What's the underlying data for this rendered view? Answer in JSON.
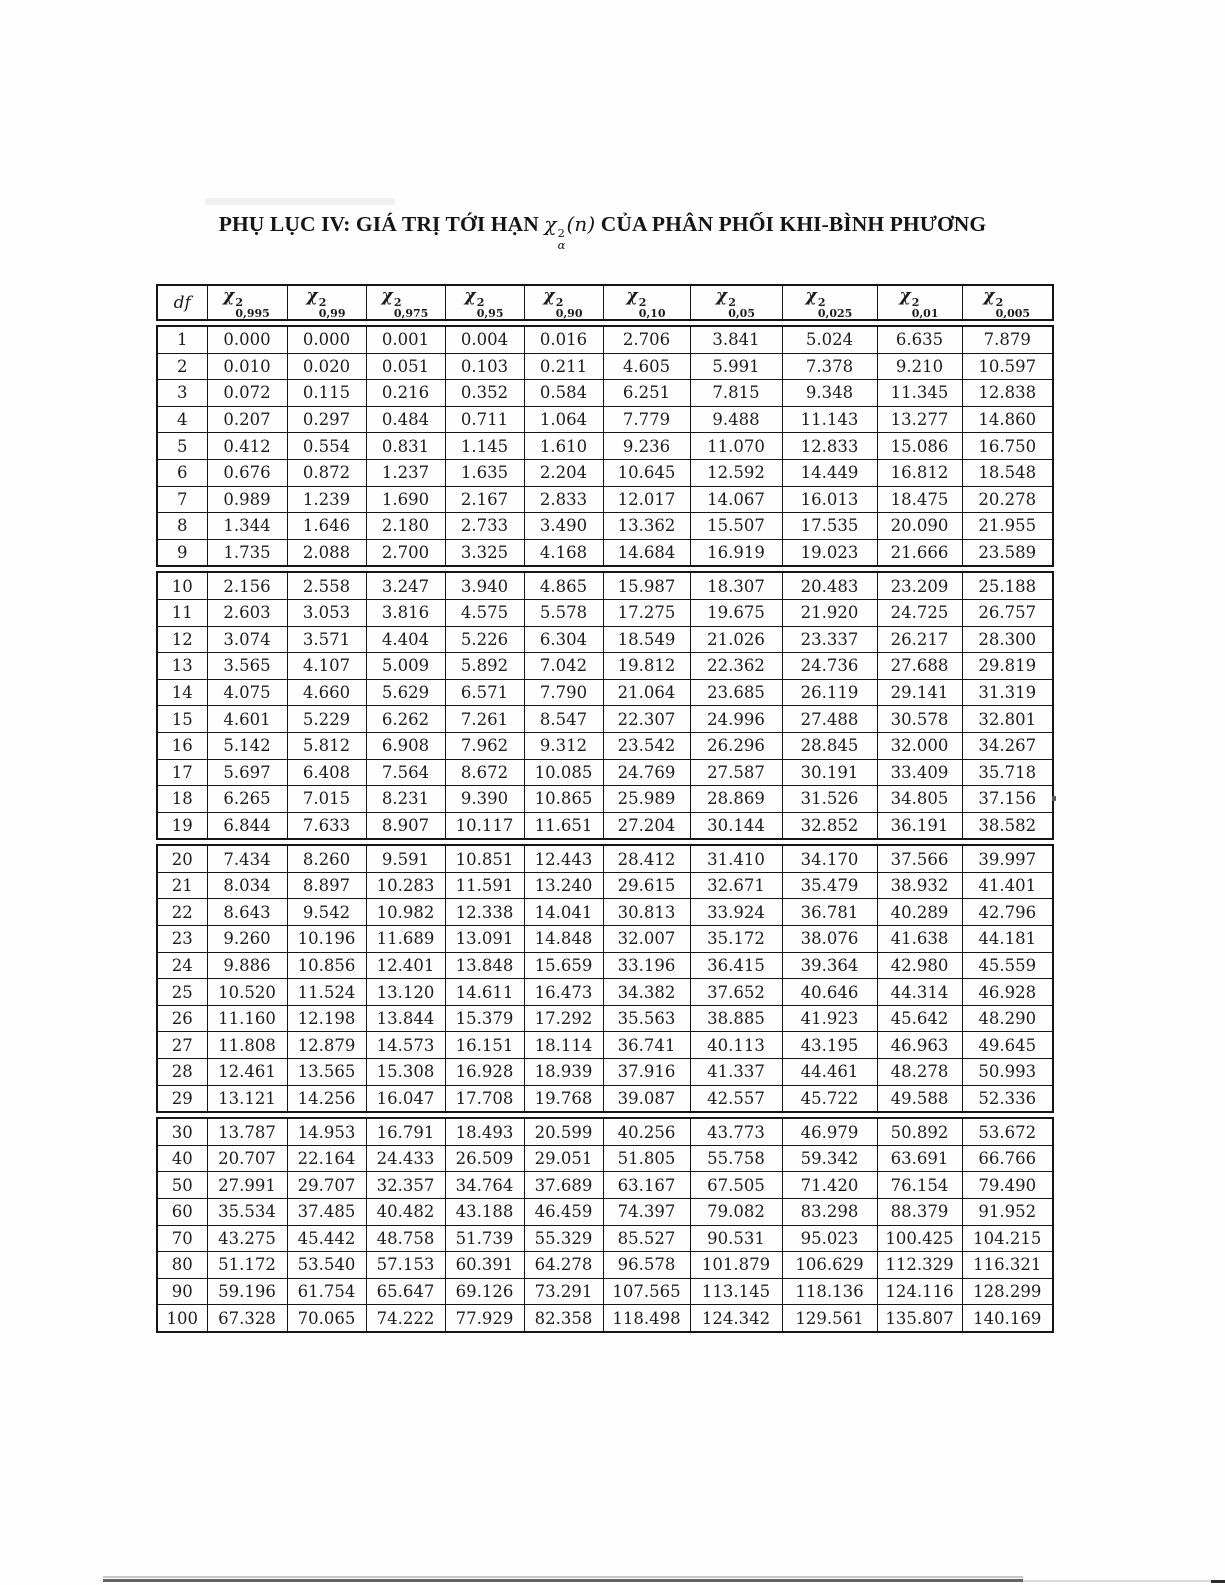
{
  "title": {
    "prefix": "PHỤ LỤC IV: GIÁ TRỊ TỚI HẠN",
    "math": {
      "chi": "χ",
      "sup": "2",
      "sub": "α",
      "arg": "(n)"
    },
    "suffix": "CỦA PHÂN PHỐI KHI-BÌNH PHƯƠNG"
  },
  "table": {
    "df_label": "df",
    "chi_symbol": "χ",
    "chi_sup": "2",
    "column_subscripts": [
      "0,995",
      "0,99",
      "0,975",
      "0,95",
      "0,90",
      "0,10",
      "0,05",
      "0,025",
      "0,01",
      "0,005"
    ],
    "blocks": [
      {
        "rows": [
          {
            "df": "1",
            "v": [
              "0.000",
              "0.000",
              "0.001",
              "0.004",
              "0.016",
              "2.706",
              "3.841",
              "5.024",
              "6.635",
              "7.879"
            ]
          },
          {
            "df": "2",
            "v": [
              "0.010",
              "0.020",
              "0.051",
              "0.103",
              "0.211",
              "4.605",
              "5.991",
              "7.378",
              "9.210",
              "10.597"
            ]
          },
          {
            "df": "3",
            "v": [
              "0.072",
              "0.115",
              "0.216",
              "0.352",
              "0.584",
              "6.251",
              "7.815",
              "9.348",
              "11.345",
              "12.838"
            ]
          },
          {
            "df": "4",
            "v": [
              "0.207",
              "0.297",
              "0.484",
              "0.711",
              "1.064",
              "7.779",
              "9.488",
              "11.143",
              "13.277",
              "14.860"
            ]
          },
          {
            "df": "5",
            "v": [
              "0.412",
              "0.554",
              "0.831",
              "1.145",
              "1.610",
              "9.236",
              "11.070",
              "12.833",
              "15.086",
              "16.750"
            ]
          },
          {
            "df": "6",
            "v": [
              "0.676",
              "0.872",
              "1.237",
              "1.635",
              "2.204",
              "10.645",
              "12.592",
              "14.449",
              "16.812",
              "18.548"
            ]
          },
          {
            "df": "7",
            "v": [
              "0.989",
              "1.239",
              "1.690",
              "2.167",
              "2.833",
              "12.017",
              "14.067",
              "16.013",
              "18.475",
              "20.278"
            ]
          },
          {
            "df": "8",
            "v": [
              "1.344",
              "1.646",
              "2.180",
              "2.733",
              "3.490",
              "13.362",
              "15.507",
              "17.535",
              "20.090",
              "21.955"
            ]
          },
          {
            "df": "9",
            "v": [
              "1.735",
              "2.088",
              "2.700",
              "3.325",
              "4.168",
              "14.684",
              "16.919",
              "19.023",
              "21.666",
              "23.589"
            ]
          }
        ]
      },
      {
        "rows": [
          {
            "df": "10",
            "v": [
              "2.156",
              "2.558",
              "3.247",
              "3.940",
              "4.865",
              "15.987",
              "18.307",
              "20.483",
              "23.209",
              "25.188"
            ]
          },
          {
            "df": "11",
            "v": [
              "2.603",
              "3.053",
              "3.816",
              "4.575",
              "5.578",
              "17.275",
              "19.675",
              "21.920",
              "24.725",
              "26.757"
            ]
          },
          {
            "df": "12",
            "v": [
              "3.074",
              "3.571",
              "4.404",
              "5.226",
              "6.304",
              "18.549",
              "21.026",
              "23.337",
              "26.217",
              "28.300"
            ]
          },
          {
            "df": "13",
            "v": [
              "3.565",
              "4.107",
              "5.009",
              "5.892",
              "7.042",
              "19.812",
              "22.362",
              "24.736",
              "27.688",
              "29.819"
            ]
          },
          {
            "df": "14",
            "v": [
              "4.075",
              "4.660",
              "5.629",
              "6.571",
              "7.790",
              "21.064",
              "23.685",
              "26.119",
              "29.141",
              "31.319"
            ]
          },
          {
            "df": "15",
            "v": [
              "4.601",
              "5.229",
              "6.262",
              "7.261",
              "8.547",
              "22.307",
              "24.996",
              "27.488",
              "30.578",
              "32.801"
            ]
          },
          {
            "df": "16",
            "v": [
              "5.142",
              "5.812",
              "6.908",
              "7.962",
              "9.312",
              "23.542",
              "26.296",
              "28.845",
              "32.000",
              "34.267"
            ]
          },
          {
            "df": "17",
            "v": [
              "5.697",
              "6.408",
              "7.564",
              "8.672",
              "10.085",
              "24.769",
              "27.587",
              "30.191",
              "33.409",
              "35.718"
            ]
          },
          {
            "df": "18",
            "v": [
              "6.265",
              "7.015",
              "8.231",
              "9.390",
              "10.865",
              "25.989",
              "28.869",
              "31.526",
              "34.805",
              "37.156"
            ]
          },
          {
            "df": "19",
            "v": [
              "6.844",
              "7.633",
              "8.907",
              "10.117",
              "11.651",
              "27.204",
              "30.144",
              "32.852",
              "36.191",
              "38.582"
            ]
          }
        ]
      },
      {
        "rows": [
          {
            "df": "20",
            "v": [
              "7.434",
              "8.260",
              "9.591",
              "10.851",
              "12.443",
              "28.412",
              "31.410",
              "34.170",
              "37.566",
              "39.997"
            ]
          },
          {
            "df": "21",
            "v": [
              "8.034",
              "8.897",
              "10.283",
              "11.591",
              "13.240",
              "29.615",
              "32.671",
              "35.479",
              "38.932",
              "41.401"
            ]
          },
          {
            "df": "22",
            "v": [
              "8.643",
              "9.542",
              "10.982",
              "12.338",
              "14.041",
              "30.813",
              "33.924",
              "36.781",
              "40.289",
              "42.796"
            ]
          },
          {
            "df": "23",
            "v": [
              "9.260",
              "10.196",
              "11.689",
              "13.091",
              "14.848",
              "32.007",
              "35.172",
              "38.076",
              "41.638",
              "44.181"
            ]
          },
          {
            "df": "24",
            "v": [
              "9.886",
              "10.856",
              "12.401",
              "13.848",
              "15.659",
              "33.196",
              "36.415",
              "39.364",
              "42.980",
              "45.559"
            ]
          },
          {
            "df": "25",
            "v": [
              "10.520",
              "11.524",
              "13.120",
              "14.611",
              "16.473",
              "34.382",
              "37.652",
              "40.646",
              "44.314",
              "46.928"
            ]
          },
          {
            "df": "26",
            "v": [
              "11.160",
              "12.198",
              "13.844",
              "15.379",
              "17.292",
              "35.563",
              "38.885",
              "41.923",
              "45.642",
              "48.290"
            ]
          },
          {
            "df": "27",
            "v": [
              "11.808",
              "12.879",
              "14.573",
              "16.151",
              "18.114",
              "36.741",
              "40.113",
              "43.195",
              "46.963",
              "49.645"
            ]
          },
          {
            "df": "28",
            "v": [
              "12.461",
              "13.565",
              "15.308",
              "16.928",
              "18.939",
              "37.916",
              "41.337",
              "44.461",
              "48.278",
              "50.993"
            ]
          },
          {
            "df": "29",
            "v": [
              "13.121",
              "14.256",
              "16.047",
              "17.708",
              "19.768",
              "39.087",
              "42.557",
              "45.722",
              "49.588",
              "52.336"
            ]
          }
        ]
      },
      {
        "rows": [
          {
            "df": "30",
            "v": [
              "13.787",
              "14.953",
              "16.791",
              "18.493",
              "20.599",
              "40.256",
              "43.773",
              "46.979",
              "50.892",
              "53.672"
            ]
          },
          {
            "df": "40",
            "v": [
              "20.707",
              "22.164",
              "24.433",
              "26.509",
              "29.051",
              "51.805",
              "55.758",
              "59.342",
              "63.691",
              "66.766"
            ]
          },
          {
            "df": "50",
            "v": [
              "27.991",
              "29.707",
              "32.357",
              "34.764",
              "37.689",
              "63.167",
              "67.505",
              "71.420",
              "76.154",
              "79.490"
            ]
          },
          {
            "df": "60",
            "v": [
              "35.534",
              "37.485",
              "40.482",
              "43.188",
              "46.459",
              "74.397",
              "79.082",
              "83.298",
              "88.379",
              "91.952"
            ]
          },
          {
            "df": "70",
            "v": [
              "43.275",
              "45.442",
              "48.758",
              "51.739",
              "55.329",
              "85.527",
              "90.531",
              "95.023",
              "100.425",
              "104.215"
            ]
          },
          {
            "df": "80",
            "v": [
              "51.172",
              "53.540",
              "57.153",
              "60.391",
              "64.278",
              "96.578",
              "101.879",
              "106.629",
              "112.329",
              "116.321"
            ]
          },
          {
            "df": "90",
            "v": [
              "59.196",
              "61.754",
              "65.647",
              "69.126",
              "73.291",
              "107.565",
              "113.145",
              "118.136",
              "124.116",
              "128.299"
            ]
          },
          {
            "df": "100",
            "v": [
              "67.328",
              "70.065",
              "74.222",
              "77.929",
              "82.358",
              "118.498",
              "124.342",
              "129.561",
              "135.807",
              "140.169"
            ]
          }
        ]
      }
    ]
  }
}
